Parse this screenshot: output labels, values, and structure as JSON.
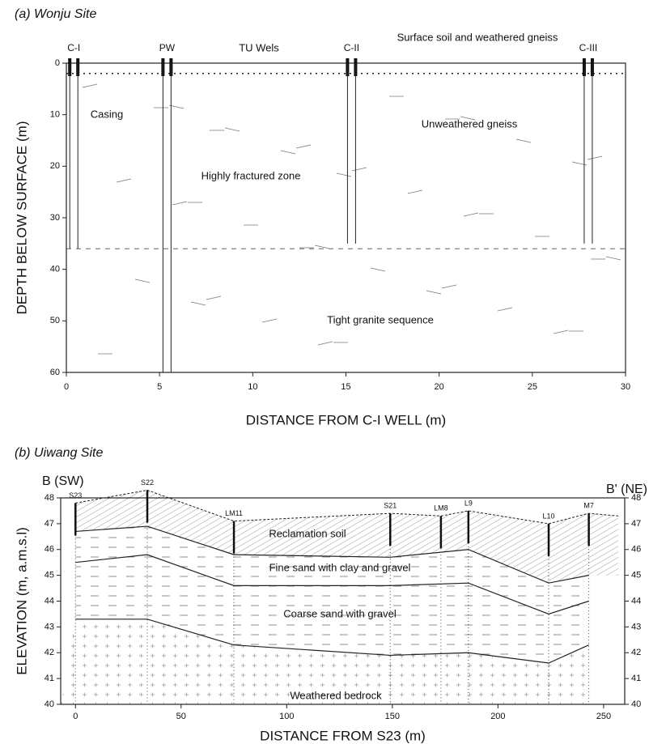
{
  "chart_data": [
    {
      "type": "cross-section",
      "title": "(a) Wonju Site",
      "xlabel": "DISTANCE FROM C-I WELL (m)",
      "ylabel": "DEPTH BELOW SURFACE (m)",
      "xlim": [
        0,
        30
      ],
      "ylim": [
        0,
        60
      ],
      "y_inverted": true,
      "xticks": [
        0,
        5,
        10,
        15,
        20,
        25,
        30
      ],
      "yticks": [
        0,
        10,
        20,
        30,
        40,
        50,
        60
      ],
      "wells": [
        {
          "name": "C-I",
          "x": 0.4,
          "depth": 36
        },
        {
          "name": "PW",
          "x": 5.4,
          "depth": 60
        },
        {
          "name": "C-II",
          "x": 15.3,
          "depth": 35
        },
        {
          "name": "C-III",
          "x": 28.0,
          "depth": 35
        }
      ],
      "annotations": [
        "TU Wels",
        "Surface soil and weathered gneiss",
        "Casing",
        "Unweathered gneiss",
        "Highly fractured zone",
        "Tight granite sequence"
      ]
    },
    {
      "type": "cross-section",
      "title": "(b) Uiwang Site",
      "xlabel": "DISTANCE FROM S23 (m)",
      "ylabel": "ELEVATION (m, a.m.s.l)",
      "left_label": "B (SW)",
      "right_label": "B' (NE)",
      "xlim": [
        -7,
        260
      ],
      "ylim": [
        40,
        48
      ],
      "y_inverted": false,
      "xticks": [
        0,
        50,
        100,
        150,
        200,
        250
      ],
      "yticks": [
        40,
        41,
        42,
        43,
        44,
        45,
        46,
        47,
        48
      ],
      "wells": [
        {
          "name": "S23",
          "x": 0,
          "top": 47.8
        },
        {
          "name": "S22",
          "x": 34,
          "top": 48.3
        },
        {
          "name": "LM11",
          "x": 75,
          "top": 47.1
        },
        {
          "name": "S21",
          "x": 149,
          "top": 47.4
        },
        {
          "name": "LM8",
          "x": 173,
          "top": 47.3
        },
        {
          "name": "L9",
          "x": 186,
          "top": 47.5
        },
        {
          "name": "L10",
          "x": 224,
          "top": 47.0
        },
        {
          "name": "M7",
          "x": 243,
          "top": 47.4
        }
      ],
      "boundaries": [
        {
          "x": [
            0,
            34,
            75,
            149,
            173,
            186,
            224,
            243,
            257
          ],
          "values": [
            47.8,
            48.3,
            47.1,
            47.4,
            47.3,
            47.5,
            47.0,
            47.4,
            47.3
          ]
        },
        {
          "x": [
            0,
            34,
            75,
            149,
            186,
            224,
            243
          ],
          "values": [
            46.7,
            46.9,
            45.8,
            45.7,
            46.0,
            44.7,
            45.0
          ]
        },
        {
          "x": [
            0,
            34,
            75,
            149,
            186,
            224,
            243
          ],
          "values": [
            45.5,
            45.8,
            44.6,
            44.6,
            44.7,
            43.5,
            44.0
          ]
        },
        {
          "x": [
            0,
            34,
            75,
            149,
            186,
            224,
            243
          ],
          "values": [
            43.3,
            43.3,
            42.3,
            41.9,
            42.0,
            41.6,
            42.3
          ]
        }
      ],
      "annotations": [
        "Reclamation soil",
        "Fine sand with clay and gravel",
        "Coarse sand with gravel",
        "Weathered bedrock"
      ]
    }
  ]
}
